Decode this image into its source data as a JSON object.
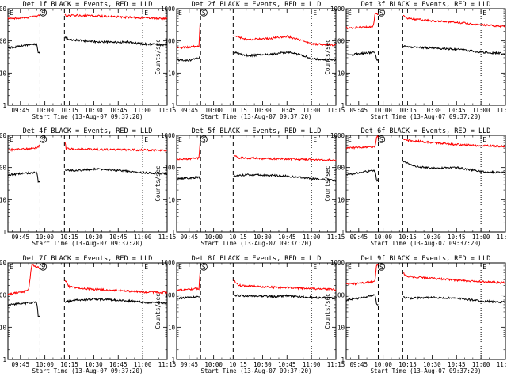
{
  "figure": {
    "background": "#ffffff",
    "event_color": "#000000",
    "lld_color": "#ff0000"
  },
  "x_ticks": [
    "09:45",
    "10:00",
    "10:15",
    "10:30",
    "10:45",
    "11:00",
    "11:15"
  ],
  "y_ticks": [
    "1",
    "10",
    "100",
    "1000"
  ],
  "xlabel": "Start Time (13-Aug-07 09:37:20)",
  "ylabel": "Counts/sec",
  "markers": {
    "E": "E",
    "S": "S"
  },
  "chart_data": [
    {
      "type": "line",
      "title": "Det 1f BLACK = Events, RED = LLD",
      "x_range": [
        "09:37:20",
        "11:15"
      ],
      "y_scale": "log",
      "ylim": [
        1,
        1000
      ],
      "gap": [
        "09:57",
        "10:12"
      ],
      "dashed_lines": [
        "09:57",
        "10:12"
      ],
      "dotted_lines": [
        "11:00"
      ],
      "marker_times": {
        "E_start": "09:37",
        "S": "09:58",
        "E_end": "11:01"
      },
      "series": [
        {
          "name": "LLD",
          "color": "#ff0000",
          "points": [
            [
              "09:37:20",
              500
            ],
            [
              "09:48",
              520
            ],
            [
              "09:55",
              580
            ],
            [
              "09:57",
              650
            ],
            [
              "10:12",
              700
            ],
            [
              "10:13",
              600
            ],
            [
              "10:20",
              620
            ],
            [
              "10:30",
              600
            ],
            [
              "10:45",
              560
            ],
            [
              "11:00",
              520
            ],
            [
              "11:15",
              500
            ]
          ]
        },
        {
          "name": "Events",
          "color": "#000000",
          "points": [
            [
              "09:37:20",
              60
            ],
            [
              "09:45",
              70
            ],
            [
              "09:55",
              80
            ],
            [
              "09:56",
              40
            ],
            [
              "10:12",
              130
            ],
            [
              "10:15",
              110
            ],
            [
              "10:30",
              95
            ],
            [
              "10:45",
              90
            ],
            [
              "10:50",
              95
            ],
            [
              "11:00",
              80
            ],
            [
              "11:15",
              75
            ]
          ]
        }
      ]
    },
    {
      "type": "line",
      "title": "Det 2f BLACK = Events, RED = LLD",
      "x_range": [
        "09:37:20",
        "11:15"
      ],
      "y_scale": "log",
      "ylim": [
        1,
        1000
      ],
      "gap": [
        "09:52",
        "10:12"
      ],
      "dashed_lines": [
        "09:52",
        "10:12"
      ],
      "dotted_lines": [
        "11:00"
      ],
      "marker_times": {
        "E_start": "09:37",
        "S": "09:53",
        "E_end": "11:01"
      },
      "series": [
        {
          "name": "LLD",
          "color": "#ff0000",
          "points": [
            [
              "09:37:20",
              60
            ],
            [
              "09:45",
              65
            ],
            [
              "09:51",
              70
            ],
            [
              "09:52",
              800
            ],
            [
              "10:12",
              150
            ],
            [
              "10:20",
              110
            ],
            [
              "10:35",
              120
            ],
            [
              "10:45",
              140
            ],
            [
              "10:55",
              100
            ],
            [
              "11:00",
              80
            ],
            [
              "11:15",
              75
            ]
          ]
        },
        {
          "name": "Events",
          "color": "#000000",
          "points": [
            [
              "09:37:20",
              25
            ],
            [
              "09:45",
              25
            ],
            [
              "09:51",
              30
            ],
            [
              "10:12",
              45
            ],
            [
              "10:20",
              35
            ],
            [
              "10:35",
              38
            ],
            [
              "10:45",
              45
            ],
            [
              "10:55",
              35
            ],
            [
              "11:00",
              28
            ],
            [
              "11:15",
              25
            ]
          ]
        }
      ]
    },
    {
      "type": "line",
      "title": "Det 3f BLACK = Events, RED = LLD",
      "x_range": [
        "09:37:20",
        "11:15"
      ],
      "y_scale": "log",
      "ylim": [
        1,
        1000
      ],
      "gap": [
        "09:57",
        "10:12"
      ],
      "dashed_lines": [
        "09:57",
        "10:12"
      ],
      "dotted_lines": [
        "11:00"
      ],
      "marker_times": {
        "E_start": "09:37",
        "S": "09:58",
        "E_end": "11:01"
      },
      "series": [
        {
          "name": "LLD",
          "color": "#ff0000",
          "points": [
            [
              "09:37:20",
              250
            ],
            [
              "09:45",
              260
            ],
            [
              "09:54",
              280
            ],
            [
              "09:55",
              700
            ],
            [
              "10:12",
              600
            ],
            [
              "10:15",
              500
            ],
            [
              "10:30",
              420
            ],
            [
              "10:45",
              380
            ],
            [
              "11:00",
              320
            ],
            [
              "11:15",
              280
            ]
          ]
        },
        {
          "name": "Events",
          "color": "#000000",
          "points": [
            [
              "09:37:20",
              35
            ],
            [
              "09:45",
              40
            ],
            [
              "09:55",
              45
            ],
            [
              "09:56",
              25
            ],
            [
              "10:12",
              70
            ],
            [
              "10:15",
              65
            ],
            [
              "10:30",
              60
            ],
            [
              "10:45",
              55
            ],
            [
              "11:00",
              45
            ],
            [
              "11:15",
              40
            ]
          ]
        }
      ]
    },
    {
      "type": "line",
      "title": "Det 4f BLACK = Events, RED = LLD",
      "x_range": [
        "09:37:20",
        "11:15"
      ],
      "y_scale": "log",
      "ylim": [
        1,
        1000
      ],
      "gap": [
        "09:57",
        "10:12"
      ],
      "dashed_lines": [
        "09:57",
        "10:12"
      ],
      "dotted_lines": [
        "11:00"
      ],
      "marker_times": {
        "E_start": "09:37",
        "S": "09:58",
        "E_end": "11:01"
      },
      "series": [
        {
          "name": "LLD",
          "color": "#ff0000",
          "points": [
            [
              "09:37:20",
              350
            ],
            [
              "09:45",
              370
            ],
            [
              "09:55",
              400
            ],
            [
              "09:57",
              500
            ],
            [
              "10:12",
              800
            ],
            [
              "10:13",
              380
            ],
            [
              "10:30",
              370
            ],
            [
              "10:45",
              360
            ],
            [
              "11:00",
              350
            ],
            [
              "11:15",
              340
            ]
          ]
        },
        {
          "name": "Events",
          "color": "#000000",
          "points": [
            [
              "09:37:20",
              60
            ],
            [
              "09:45",
              65
            ],
            [
              "09:55",
              70
            ],
            [
              "09:56",
              35
            ],
            [
              "10:12",
              85
            ],
            [
              "10:20",
              80
            ],
            [
              "10:30",
              90
            ],
            [
              "10:40",
              85
            ],
            [
              "11:00",
              70
            ],
            [
              "11:15",
              65
            ]
          ]
        }
      ]
    },
    {
      "type": "line",
      "title": "Det 5f BLACK = Events, RED = LLD",
      "x_range": [
        "09:37:20",
        "11:15"
      ],
      "y_scale": "log",
      "ylim": [
        1,
        1000
      ],
      "gap": [
        "09:52",
        "10:12"
      ],
      "dashed_lines": [
        "09:52",
        "10:12"
      ],
      "dotted_lines": [
        "11:00"
      ],
      "marker_times": {
        "E_start": "09:37",
        "S": "09:53",
        "E_end": "11:01"
      },
      "series": [
        {
          "name": "LLD",
          "color": "#ff0000",
          "points": [
            [
              "09:37:20",
              180
            ],
            [
              "09:45",
              185
            ],
            [
              "09:51",
              200
            ],
            [
              "09:52",
              900
            ],
            [
              "10:12",
              250
            ],
            [
              "10:15",
              200
            ],
            [
              "10:30",
              190
            ],
            [
              "10:45",
              185
            ],
            [
              "11:00",
              175
            ],
            [
              "11:15",
              170
            ]
          ]
        },
        {
          "name": "Events",
          "color": "#000000",
          "points": [
            [
              "09:37:20",
              45
            ],
            [
              "09:45",
              48
            ],
            [
              "09:51",
              50
            ],
            [
              "10:12",
              55
            ],
            [
              "10:20",
              60
            ],
            [
              "10:35",
              58
            ],
            [
              "10:45",
              55
            ],
            [
              "11:00",
              45
            ],
            [
              "11:15",
              40
            ]
          ]
        }
      ]
    },
    {
      "type": "line",
      "title": "Det 6f BLACK = Events, RED = LLD",
      "x_range": [
        "09:37:20",
        "11:15"
      ],
      "y_scale": "log",
      "ylim": [
        1,
        1000
      ],
      "gap": [
        "09:57",
        "10:12"
      ],
      "dashed_lines": [
        "09:57",
        "10:12"
      ],
      "dotted_lines": [
        "11:00"
      ],
      "marker_times": {
        "E_start": "09:37",
        "S": "09:58",
        "E_end": "11:01"
      },
      "series": [
        {
          "name": "LLD",
          "color": "#ff0000",
          "points": [
            [
              "09:37:20",
              400
            ],
            [
              "09:45",
              420
            ],
            [
              "09:55",
              450
            ],
            [
              "09:56",
              900
            ],
            [
              "10:12",
              800
            ],
            [
              "10:15",
              700
            ],
            [
              "10:30",
              600
            ],
            [
              "10:45",
              520
            ],
            [
              "11:00",
              480
            ],
            [
              "11:15",
              460
            ]
          ]
        },
        {
          "name": "Events",
          "color": "#000000",
          "points": [
            [
              "09:37:20",
              60
            ],
            [
              "09:45",
              70
            ],
            [
              "09:55",
              80
            ],
            [
              "09:56",
              40
            ],
            [
              "10:12",
              150
            ],
            [
              "10:20",
              110
            ],
            [
              "10:30",
              95
            ],
            [
              "10:45",
              100
            ],
            [
              "11:00",
              75
            ],
            [
              "11:15",
              70
            ]
          ]
        }
      ]
    },
    {
      "type": "line",
      "title": "Det 7f BLACK = Events, RED = LLD",
      "x_range": [
        "09:37:20",
        "11:15"
      ],
      "y_scale": "log",
      "ylim": [
        1,
        1000
      ],
      "gap": [
        "09:57",
        "10:12"
      ],
      "dashed_lines": [
        "09:57",
        "10:12"
      ],
      "dotted_lines": [
        "11:00"
      ],
      "marker_times": {
        "E_start": "09:37",
        "S": "09:58",
        "E_end": "11:01"
      },
      "series": [
        {
          "name": "LLD",
          "color": "#ff0000",
          "points": [
            [
              "09:37:20",
              110
            ],
            [
              "09:45",
              120
            ],
            [
              "09:50",
              140
            ],
            [
              "09:52",
              900
            ],
            [
              "10:12",
              300
            ],
            [
              "10:15",
              180
            ],
            [
              "10:30",
              150
            ],
            [
              "10:45",
              140
            ],
            [
              "11:00",
              125
            ],
            [
              "11:15",
              120
            ]
          ]
        },
        {
          "name": "Events",
          "color": "#000000",
          "points": [
            [
              "09:37:20",
              50
            ],
            [
              "09:45",
              55
            ],
            [
              "09:55",
              60
            ],
            [
              "09:56",
              20
            ],
            [
              "10:12",
              60
            ],
            [
              "10:20",
              70
            ],
            [
              "10:30",
              75
            ],
            [
              "10:45",
              70
            ],
            [
              "11:00",
              60
            ],
            [
              "11:15",
              55
            ]
          ]
        }
      ]
    },
    {
      "type": "line",
      "title": "Det 8f BLACK = Events, RED = LLD",
      "x_range": [
        "09:37:20",
        "11:15"
      ],
      "y_scale": "log",
      "ylim": [
        1,
        1000
      ],
      "gap": [
        "09:52",
        "10:12"
      ],
      "dashed_lines": [
        "09:52",
        "10:12"
      ],
      "dotted_lines": [
        "11:00"
      ],
      "marker_times": {
        "E_start": "09:37",
        "S": "09:53",
        "E_end": "11:01"
      },
      "series": [
        {
          "name": "LLD",
          "color": "#ff0000",
          "points": [
            [
              "09:37:20",
              140
            ],
            [
              "09:45",
              150
            ],
            [
              "09:51",
              160
            ],
            [
              "09:52",
              900
            ],
            [
              "10:12",
              300
            ],
            [
              "10:15",
              200
            ],
            [
              "10:30",
              180
            ],
            [
              "10:45",
              170
            ],
            [
              "11:00",
              160
            ],
            [
              "11:15",
              150
            ]
          ]
        },
        {
          "name": "Events",
          "color": "#000000",
          "points": [
            [
              "09:37:20",
              80
            ],
            [
              "09:45",
              85
            ],
            [
              "09:51",
              90
            ],
            [
              "10:12",
              100
            ],
            [
              "10:20",
              95
            ],
            [
              "10:35",
              90
            ],
            [
              "10:45",
              95
            ],
            [
              "11:00",
              85
            ],
            [
              "11:15",
              80
            ]
          ]
        }
      ]
    },
    {
      "type": "line",
      "title": "Det 9f BLACK = Events, RED = LLD",
      "x_range": [
        "09:37:20",
        "11:15"
      ],
      "y_scale": "log",
      "ylim": [
        1,
        1000
      ],
      "gap": [
        "09:57",
        "10:12"
      ],
      "dashed_lines": [
        "09:57",
        "10:12"
      ],
      "dotted_lines": [
        "11:00"
      ],
      "marker_times": {
        "E_start": "09:37",
        "S": "09:58",
        "E_end": "11:01"
      },
      "series": [
        {
          "name": "LLD",
          "color": "#ff0000",
          "points": [
            [
              "09:37:20",
              220
            ],
            [
              "09:45",
              230
            ],
            [
              "09:55",
              260
            ],
            [
              "09:56",
              900
            ],
            [
              "10:12",
              500
            ],
            [
              "10:15",
              380
            ],
            [
              "10:30",
              330
            ],
            [
              "10:45",
              290
            ],
            [
              "11:00",
              260
            ],
            [
              "11:15",
              240
            ]
          ]
        },
        {
          "name": "Events",
          "color": "#000000",
          "points": [
            [
              "09:37:20",
              70
            ],
            [
              "09:45",
              80
            ],
            [
              "09:55",
              100
            ],
            [
              "09:56",
              50
            ],
            [
              "10:12",
              90
            ],
            [
              "10:15",
              80
            ],
            [
              "10:30",
              85
            ],
            [
              "10:45",
              80
            ],
            [
              "11:00",
              65
            ],
            [
              "11:15",
              60
            ]
          ]
        }
      ]
    }
  ]
}
